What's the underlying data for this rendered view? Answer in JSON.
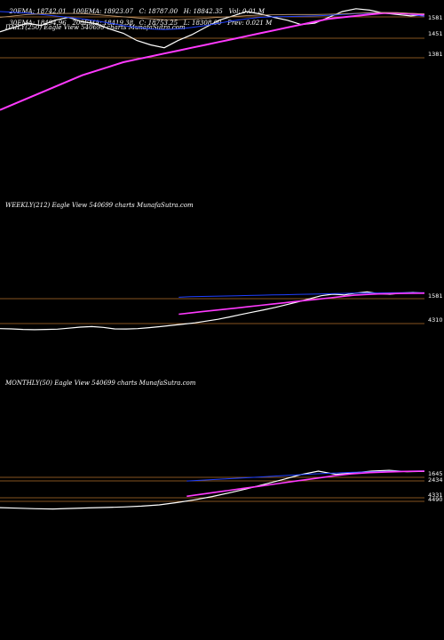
{
  "header": {
    "line1": [
      "20EMA: 18742.01",
      "100EMA: 18923.07",
      "C: 18787.00",
      "H: 18842.35",
      "Vol: 0.01 M"
    ],
    "line2": [
      "30EMA: 18494.96",
      "200EMA: 18419.38",
      "C: 18753.25",
      "L: 18308.00",
      "Prev: 0.021 M"
    ]
  },
  "chart_data": [
    {
      "panel": "daily",
      "type": "line",
      "title": "DAILY(250) Eagle View 540699 charts MunafaSutra.com",
      "price_labels": [
        "1581",
        "1451",
        "1381"
      ],
      "series": [
        {
          "name": "",
          "color": "#ffffff",
          "values": [
            18200,
            18350,
            18500,
            18420,
            18600,
            18700,
            18550,
            18480,
            18300,
            18150,
            17900,
            17750,
            17650,
            17900,
            18100,
            18350,
            18600,
            18750,
            18900,
            18820,
            18700,
            18600,
            18450,
            18500,
            18700,
            18900,
            19000,
            18950,
            18850,
            18800,
            18750,
            18787
          ]
        },
        {
          "name": "",
          "color": "#1f3fff",
          "values": [
            18900,
            18880,
            18850,
            18800,
            18750,
            18700,
            18650,
            18580,
            18500,
            18420,
            18350,
            18300,
            18280,
            18300,
            18350,
            18420,
            18500,
            18580,
            18650,
            18700,
            18720,
            18730,
            18740,
            18750,
            18770,
            18800,
            18830,
            18850,
            18860,
            18850,
            18800,
            18742
          ]
        },
        {
          "name": "",
          "color": "#ff3aff",
          "values": [
            15500,
            15700,
            15900,
            16100,
            16300,
            16500,
            16700,
            16850,
            17000,
            17150,
            17250,
            17350,
            17450,
            17550,
            17650,
            17750,
            17850,
            17950,
            18050,
            18150,
            18250,
            18350,
            18450,
            18550,
            18650,
            18700,
            18750,
            18800,
            18850,
            18850,
            18820,
            18800
          ]
        },
        {
          "name": "",
          "color": "#c8a27a",
          "values": [
            18700,
            18750,
            18800,
            18820,
            18830,
            18840,
            18830,
            18800,
            18760,
            18720,
            18680,
            18650,
            18620,
            18620,
            18640,
            18670,
            18700,
            18730,
            18760,
            18780,
            18790,
            18800,
            18800,
            18800,
            18810,
            18820,
            18840,
            18860,
            18870,
            18860,
            18840,
            18820
          ]
        }
      ]
    },
    {
      "panel": "weekly",
      "type": "line",
      "title": "WEEKLY(212) Eagle View 540699 charts MunafaSutra.com",
      "price_labels": [
        "1581",
        "4310"
      ],
      "series": [
        {
          "name": "",
          "color": "#ffffff",
          "values": [
            4800,
            4700,
            4500,
            4400,
            4500,
            4600,
            5000,
            5400,
            5600,
            5300,
            4700,
            4650,
            4800,
            5200,
            5600,
            6100,
            6600,
            7100,
            7800,
            8500,
            9400,
            10400,
            11300,
            12200,
            13200,
            14300,
            15400,
            16600,
            17800,
            18400,
            18100,
            18800,
            19300,
            18600,
            18400,
            18900,
            19100,
            18787
          ]
        },
        {
          "name": "",
          "color": "#1f3fff",
          "values": [
            17200,
            17400,
            17500,
            17600,
            17700,
            17800,
            17900,
            18000,
            18100,
            18200,
            18300,
            18400,
            18500,
            18600,
            18700,
            18800,
            18850,
            18900,
            18950,
            19000,
            19000,
            19000
          ]
        },
        {
          "name": "",
          "color": "#ff3aff",
          "values": [
            10500,
            11000,
            11500,
            12000,
            12500,
            13000,
            13500,
            14000,
            14500,
            15000,
            15500,
            16000,
            16500,
            17000,
            17500,
            18000,
            18300,
            18500,
            18600,
            18700,
            18750,
            18800
          ]
        }
      ]
    },
    {
      "panel": "monthly",
      "type": "line",
      "title": "MONTHLY(50) Eagle View 540699 charts MunafaSutra.com",
      "price_labels": [
        "1645",
        "2434",
        "4331",
        "4490"
      ],
      "series": [
        {
          "name": "",
          "color": "#ffffff",
          "values": [
            4500,
            4300,
            4100,
            4000,
            4200,
            4400,
            4600,
            4800,
            5100,
            5600,
            6500,
            7600,
            8900,
            10400,
            12000,
            13800,
            15600,
            17500,
            18900,
            17600,
            18200,
            18900,
            19200,
            18700,
            18787
          ]
        },
        {
          "name": "",
          "color": "#1f3fff",
          "values": [
            15000,
            15400,
            15800,
            16200,
            16600,
            17000,
            17400,
            17800,
            18100,
            18400,
            18600,
            18800,
            18900,
            19000
          ]
        },
        {
          "name": "",
          "color": "#ff3aff",
          "values": [
            9000,
            10000,
            11000,
            12000,
            13000,
            14000,
            15000,
            16000,
            17000,
            17800,
            18300,
            18600,
            18800,
            18900
          ]
        }
      ]
    }
  ]
}
